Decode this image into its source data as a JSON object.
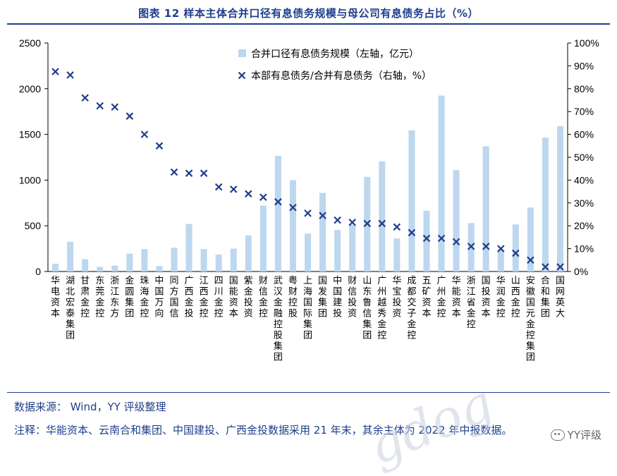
{
  "title": "图表 12  样本主体合并口径有息债务规模与母公司有息债务占比（%）",
  "source": "数据来源：  Wind，YY 评级整理",
  "note": "注释：华能资本、云南合和集团、中国建投、广西金投数据采用 21 年末，其余主体为 2022 年中报数据。",
  "watermark": "gdog",
  "brand": "YY评级",
  "chart_data": {
    "type": "bar+scatter",
    "categories": [
      "华电资本",
      "湖北宏泰集团",
      "甘肃金控",
      "东莞金控",
      "浙江东方",
      "金圆集团",
      "珠海金控",
      "中国万向",
      "同方国信",
      "广西金投",
      "江西金控",
      "四川金控",
      "国能资本",
      "紫金投资",
      "财信金控",
      "武汉金融控股集团",
      "粤财控股",
      "上海国际集团",
      "国发集团",
      "中国建投",
      "财信投资",
      "山东鲁信集团",
      "广州越秀金控",
      "华宝投资",
      "成都交子金控",
      "五矿资本",
      "广州金控",
      "华能资本",
      "浙江省金控",
      "国投资本",
      "华润金控",
      "山西金控",
      "安徽国元金控集团",
      "合和集团",
      "国网英大"
    ],
    "series": [
      {
        "name": "合并口径有息债务规模（左轴，亿元）",
        "axis": "left",
        "type": "bar",
        "color": "#bdd7ee",
        "values": [
          85,
          325,
          135,
          50,
          65,
          195,
          245,
          60,
          260,
          520,
          245,
          185,
          250,
          395,
          720,
          1265,
          1000,
          415,
          860,
          455,
          510,
          1035,
          1205,
          360,
          1545,
          665,
          1925,
          1110,
          530,
          1370,
          245,
          515,
          700,
          1465,
          1590
        ]
      },
      {
        "name": "本部有息债务/合并有息债务（右轴，%）",
        "axis": "right",
        "type": "scatter",
        "marker": "x",
        "color": "#1f3e8c",
        "values": [
          87.5,
          86,
          76,
          72.5,
          72,
          68,
          60,
          55,
          43.5,
          43,
          43,
          37,
          36,
          34,
          32.5,
          30.5,
          28,
          25.5,
          24.5,
          22.5,
          21.5,
          21,
          21,
          19.5,
          17,
          14.5,
          14.5,
          13,
          11,
          11,
          10,
          8,
          5,
          2,
          2
        ]
      }
    ],
    "yleft": {
      "min": 0,
      "max": 2500,
      "ticks": [
        "0",
        "500",
        "1000",
        "1500",
        "2000",
        "2500"
      ]
    },
    "yright": {
      "min": 0,
      "max": 100,
      "ticks": [
        "0%",
        "10%",
        "20%",
        "30%",
        "40%",
        "50%",
        "60%",
        "70%",
        "80%",
        "90%",
        "100%"
      ]
    },
    "legend": [
      "合并口径有息债务规模（左轴，亿元）",
      "本部有息债务/合并有息债务（右轴，%）"
    ],
    "legend_position": "top-center",
    "grid": false
  }
}
